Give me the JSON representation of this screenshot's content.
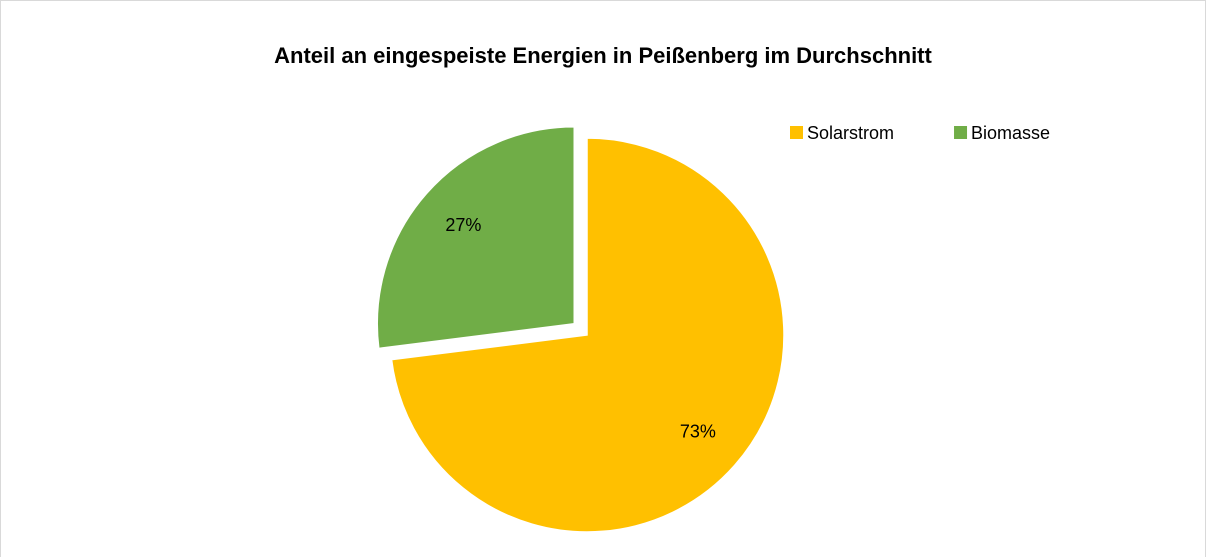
{
  "chart_data": {
    "type": "pie",
    "title": "Anteil an eingespeiste Energien in Peißenberg im Durchschnitt",
    "categories": [
      "Solarstrom",
      "Biomasse"
    ],
    "values": [
      73,
      27
    ],
    "value_labels": [
      "73%",
      "27%"
    ],
    "colors": [
      "#ffc000",
      "#70ad47"
    ],
    "explode": [
      false,
      true
    ],
    "legend": "top-right"
  }
}
